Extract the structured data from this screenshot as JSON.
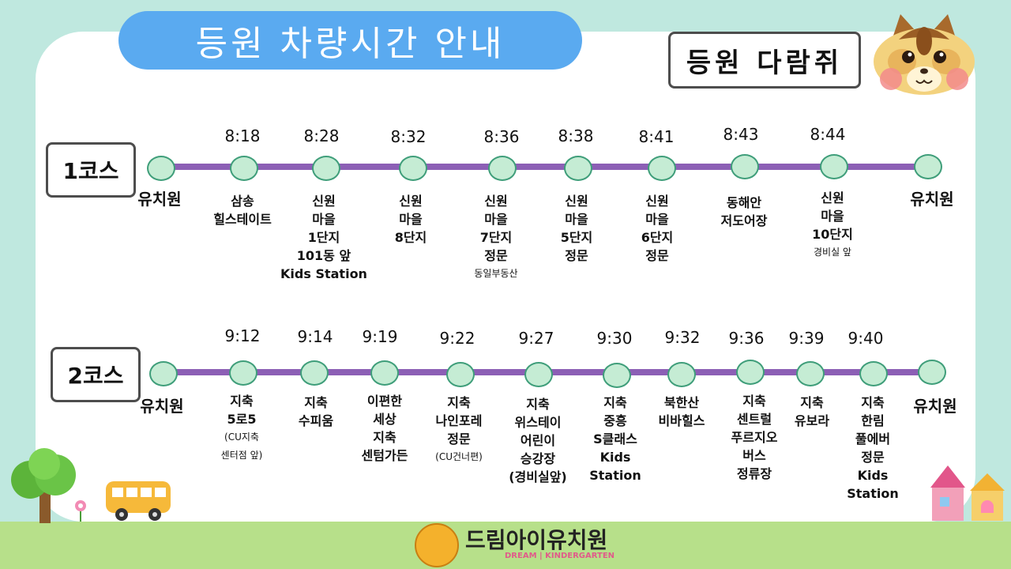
{
  "header": {
    "title": "등원 차량시간 안내",
    "class_name": "등원 다람쥐"
  },
  "courses": [
    {
      "label": "1코스",
      "stops": [
        {
          "time": "",
          "lines": [
            "유치원"
          ],
          "terminal": true
        },
        {
          "time": "8:18",
          "lines": [
            "삼송",
            "힐스테이트"
          ]
        },
        {
          "time": "8:28",
          "lines": [
            "신원",
            "마을",
            "1단지",
            "101동 앞",
            "Kids Station"
          ]
        },
        {
          "time": "8:32",
          "lines": [
            "신원",
            "마을",
            "8단지"
          ]
        },
        {
          "time": "8:36",
          "lines": [
            "신원",
            "마을",
            "7단지",
            "정문"
          ],
          "note": "동일부동산"
        },
        {
          "time": "8:38",
          "lines": [
            "신원",
            "마을",
            "5단지",
            "정문"
          ]
        },
        {
          "time": "8:41",
          "lines": [
            "신원",
            "마을",
            "6단지",
            "정문"
          ]
        },
        {
          "time": "8:43",
          "lines": [
            "동해안",
            "저도어장"
          ]
        },
        {
          "time": "8:44",
          "lines": [
            "신원",
            "마을",
            "10단지"
          ],
          "note": "경비실 앞"
        },
        {
          "time": "",
          "lines": [
            "유치원"
          ],
          "terminal": true
        }
      ]
    },
    {
      "label": "2코스",
      "stops": [
        {
          "time": "",
          "lines": [
            "유치원"
          ],
          "terminal": true
        },
        {
          "time": "9:12",
          "lines": [
            "지축",
            "5로5"
          ],
          "small_lines": [
            "(CU지축",
            "센터점 앞)"
          ]
        },
        {
          "time": "9:14",
          "lines": [
            "지축",
            "수피움"
          ]
        },
        {
          "time": "9:19",
          "lines": [
            "이편한",
            "세상",
            "지축",
            "센텀가든"
          ]
        },
        {
          "time": "9:22",
          "lines": [
            "지축",
            "나인포레",
            "정문"
          ],
          "small_lines": [
            "(CU건너편)"
          ]
        },
        {
          "time": "9:27",
          "lines": [
            "지축",
            "위스테이",
            "어린이",
            "승강장",
            "(경비실앞)"
          ]
        },
        {
          "time": "9:30",
          "lines": [
            "지축",
            "중흥",
            "S클래스",
            "Kids",
            "Station"
          ]
        },
        {
          "time": "9:32",
          "lines": [
            "북한산",
            "비바힐스"
          ]
        },
        {
          "time": "9:36",
          "lines": [
            "지축",
            "센트럴",
            "푸르지오",
            "버스",
            "정류장"
          ]
        },
        {
          "time": "9:39",
          "lines": [
            "지축",
            "유보라"
          ]
        },
        {
          "time": "9:40",
          "lines": [
            "지축",
            "한림",
            "풀에버",
            "정문",
            "Kids",
            "Station"
          ]
        },
        {
          "time": "",
          "lines": [
            "유치원"
          ],
          "terminal": true
        }
      ]
    }
  ],
  "logo": {
    "name": "드림아이유치원",
    "subtitle": "DREAM | KINDERGARTEN"
  },
  "colors": {
    "background": "#bfe8df",
    "title_pill": "#5aaaf0",
    "route_line": "#8c5fb5",
    "stop_fill": "#c5ecd4",
    "grass": "#b7e08a"
  }
}
